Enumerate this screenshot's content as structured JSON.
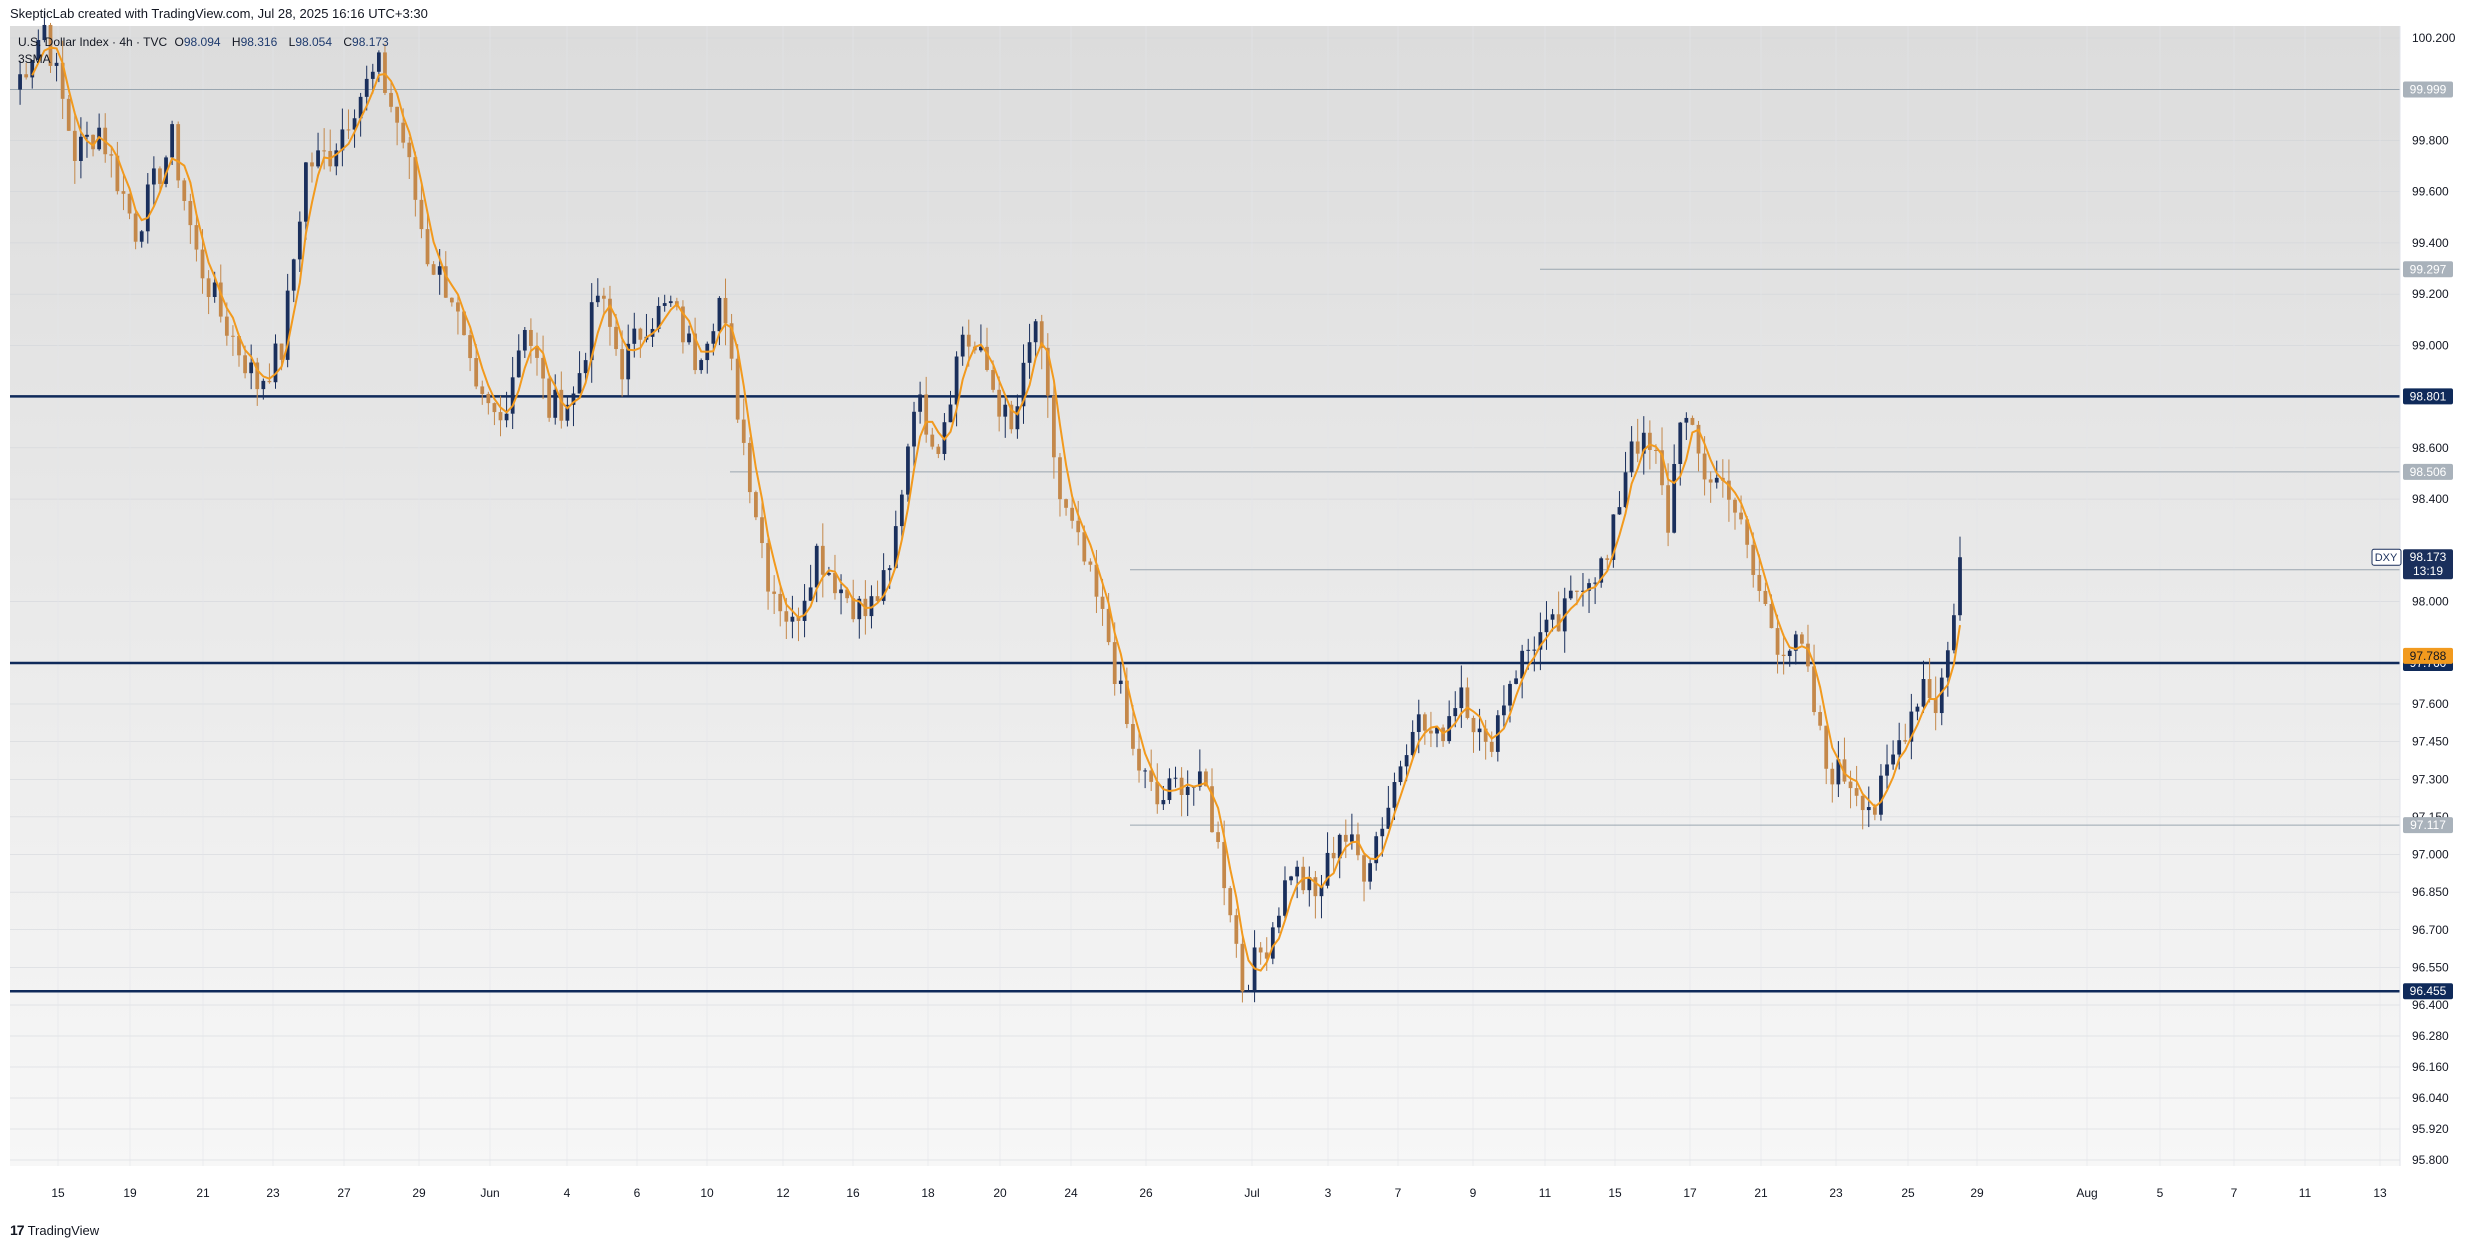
{
  "caption": "SkepticLab created with TradingView.com, Jul 28, 2025 16:16 UTC+3:30",
  "legend": {
    "symbol": "U.S. Dollar Index · 4h · TVC",
    "open": "98.094",
    "high": "98.316",
    "low": "98.054",
    "close": "98.173",
    "open_label": "O",
    "high_label": "H",
    "low_label": "L",
    "close_label": "C",
    "indicator": "3SMA"
  },
  "footer": {
    "logo": "17",
    "text": "TradingView"
  },
  "colors": {
    "bull": "#1a2f5c",
    "bear": "#c4884a",
    "sma": "#f29a1e",
    "level": "#0f2a5a",
    "thin_level": "#9aa6b0"
  },
  "chart_data": {
    "type": "candlestick",
    "symbol": "DXY",
    "timeframe": "4h",
    "ylim": [
      95.7,
      100.25
    ],
    "y_ticks": [
      "100.200",
      "99.800",
      "99.600",
      "99.400",
      "99.200",
      "99.000",
      "98.600",
      "98.400",
      "98.000",
      "97.600",
      "97.450",
      "97.300",
      "97.150",
      "97.000",
      "96.850",
      "96.700",
      "96.550",
      "96.400",
      "96.280",
      "96.160",
      "96.040",
      "95.920",
      "95.800"
    ],
    "x_ticks": [
      "15",
      "19",
      "21",
      "23",
      "27",
      "29",
      "Jun",
      "4",
      "6",
      "10",
      "12",
      "16",
      "18",
      "20",
      "24",
      "26",
      "Jul",
      "3",
      "7",
      "9",
      "11",
      "15",
      "17",
      "21",
      "23",
      "25",
      "29",
      "Aug",
      "5",
      "7",
      "11",
      "13"
    ],
    "anchors": [
      {
        "t": 0,
        "p": 100.0
      },
      {
        "t": 5,
        "p": 100.25
      },
      {
        "t": 10,
        "p": 99.75
      },
      {
        "t": 14,
        "p": 99.85
      },
      {
        "t": 20,
        "p": 99.45
      },
      {
        "t": 26,
        "p": 99.8
      },
      {
        "t": 30,
        "p": 99.35
      },
      {
        "t": 34,
        "p": 99.12
      },
      {
        "t": 40,
        "p": 98.85
      },
      {
        "t": 44,
        "p": 98.98
      },
      {
        "t": 48,
        "p": 99.7
      },
      {
        "t": 52,
        "p": 99.75
      },
      {
        "t": 56,
        "p": 99.95
      },
      {
        "t": 60,
        "p": 100.08
      },
      {
        "t": 64,
        "p": 99.8
      },
      {
        "t": 68,
        "p": 99.35
      },
      {
        "t": 72,
        "p": 99.2
      },
      {
        "t": 76,
        "p": 98.78
      },
      {
        "t": 80,
        "p": 98.7
      },
      {
        "t": 84,
        "p": 99.1
      },
      {
        "t": 88,
        "p": 98.75
      },
      {
        "t": 92,
        "p": 98.8
      },
      {
        "t": 96,
        "p": 99.2
      },
      {
        "t": 100,
        "p": 98.92
      },
      {
        "t": 104,
        "p": 99.1
      },
      {
        "t": 108,
        "p": 99.15
      },
      {
        "t": 112,
        "p": 98.95
      },
      {
        "t": 116,
        "p": 99.18
      },
      {
        "t": 120,
        "p": 98.62
      },
      {
        "t": 124,
        "p": 98.1
      },
      {
        "t": 128,
        "p": 97.9
      },
      {
        "t": 132,
        "p": 98.2
      },
      {
        "t": 136,
        "p": 98.05
      },
      {
        "t": 140,
        "p": 97.95
      },
      {
        "t": 144,
        "p": 98.1
      },
      {
        "t": 148,
        "p": 98.8
      },
      {
        "t": 152,
        "p": 98.62
      },
      {
        "t": 156,
        "p": 99.05
      },
      {
        "t": 160,
        "p": 98.9
      },
      {
        "t": 164,
        "p": 98.65
      },
      {
        "t": 168,
        "p": 99.1
      },
      {
        "t": 172,
        "p": 98.4
      },
      {
        "t": 176,
        "p": 98.15
      },
      {
        "t": 180,
        "p": 97.85
      },
      {
        "t": 184,
        "p": 97.4
      },
      {
        "t": 188,
        "p": 97.2
      },
      {
        "t": 192,
        "p": 97.3
      },
      {
        "t": 196,
        "p": 97.25
      },
      {
        "t": 200,
        "p": 96.8
      },
      {
        "t": 202,
        "p": 96.48
      },
      {
        "t": 206,
        "p": 96.65
      },
      {
        "t": 210,
        "p": 96.95
      },
      {
        "t": 214,
        "p": 96.82
      },
      {
        "t": 218,
        "p": 97.1
      },
      {
        "t": 222,
        "p": 96.95
      },
      {
        "t": 226,
        "p": 97.2
      },
      {
        "t": 230,
        "p": 97.55
      },
      {
        "t": 234,
        "p": 97.45
      },
      {
        "t": 238,
        "p": 97.68
      },
      {
        "t": 242,
        "p": 97.4
      },
      {
        "t": 246,
        "p": 97.7
      },
      {
        "t": 250,
        "p": 97.85
      },
      {
        "t": 254,
        "p": 97.9
      },
      {
        "t": 258,
        "p": 98.1
      },
      {
        "t": 262,
        "p": 98.15
      },
      {
        "t": 266,
        "p": 98.65
      },
      {
        "t": 270,
        "p": 98.55
      },
      {
        "t": 272,
        "p": 98.3
      },
      {
        "t": 274,
        "p": 98.75
      },
      {
        "t": 278,
        "p": 98.5
      },
      {
        "t": 282,
        "p": 98.45
      },
      {
        "t": 286,
        "p": 98.1
      },
      {
        "t": 290,
        "p": 97.85
      },
      {
        "t": 294,
        "p": 97.8
      },
      {
        "t": 298,
        "p": 97.35
      },
      {
        "t": 302,
        "p": 97.3
      },
      {
        "t": 306,
        "p": 97.18
      },
      {
        "t": 310,
        "p": 97.45
      },
      {
        "t": 314,
        "p": 97.7
      },
      {
        "t": 316,
        "p": 97.6
      },
      {
        "t": 318,
        "p": 97.8
      },
      {
        "t": 320,
        "p": 98.173
      }
    ],
    "price_levels": [
      {
        "value": "99.999",
        "style": "thin"
      },
      {
        "value": "99.297",
        "style": "thin"
      },
      {
        "value": "98.801",
        "style": "thick"
      },
      {
        "value": "98.506",
        "style": "thin"
      },
      {
        "value": "98.124",
        "style": "thin"
      },
      {
        "value": "97.760",
        "style": "thick"
      },
      {
        "value": "97.117",
        "style": "thin"
      },
      {
        "value": "96.455",
        "style": "thick"
      }
    ],
    "sma_label": "97.788",
    "current": {
      "symbol": "DXY",
      "price": "98.173",
      "countdown": "13:19"
    }
  }
}
